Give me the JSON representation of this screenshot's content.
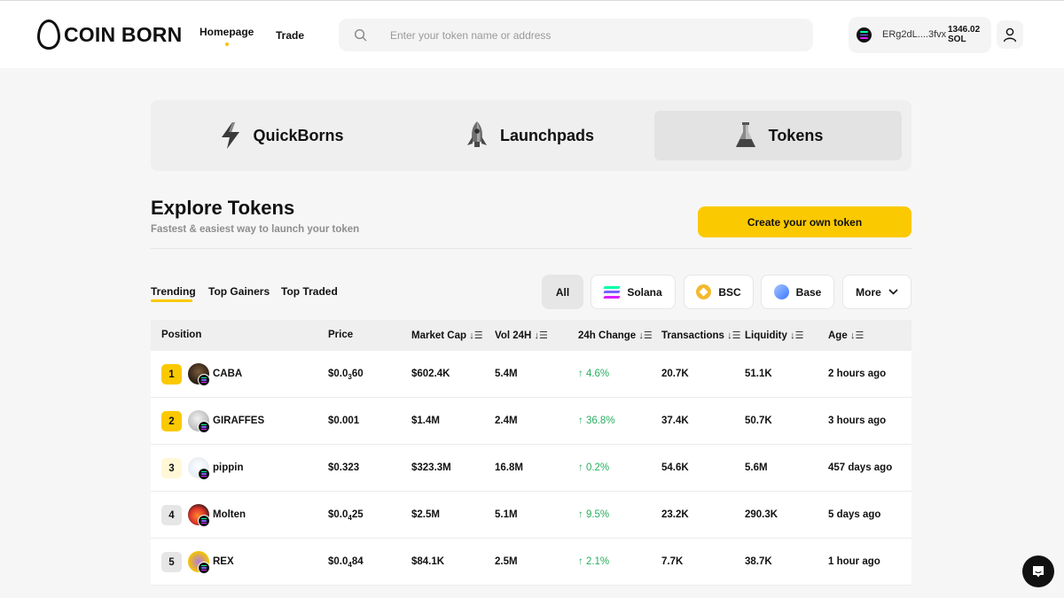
{
  "header": {
    "logo_text": "COIN BORN",
    "nav": [
      {
        "label": "Homepage",
        "active": true
      },
      {
        "label": "Trade",
        "active": false
      }
    ],
    "search_placeholder": "Enter your token name or address",
    "wallet": {
      "address": "ERg2dL....3fvx",
      "balance": "1346.02",
      "currency": "SOL"
    }
  },
  "categories": [
    {
      "label": "QuickBorns",
      "icon": "lightning-icon"
    },
    {
      "label": "Launchpads",
      "icon": "rocket-icon"
    },
    {
      "label": "Tokens",
      "icon": "flask-icon",
      "active": true
    }
  ],
  "explore": {
    "title": "Explore Tokens",
    "subtitle": "Fastest & easiest way to launch your token",
    "create_label": "Create your own token"
  },
  "filters": {
    "tabs": [
      "Trending",
      "Top Gainers",
      "Top Traded"
    ],
    "active_tab": "Trending",
    "chains": [
      "All",
      "Solana",
      "BSC",
      "Base",
      "More"
    ],
    "active_chain": "All"
  },
  "table": {
    "columns": [
      "Position",
      "Price",
      "Market Cap",
      "Vol 24H",
      "24h Change",
      "Transactions",
      "Liquidity",
      "Age"
    ],
    "rows": [
      {
        "rank": "1",
        "name": "CABA",
        "price_a": "$0.0",
        "price_sub": "3",
        "price_b": "60",
        "mcap": "$602.4K",
        "vol": "5.4M",
        "change": "↑ 4.6%",
        "tx": "20.7K",
        "liq": "51.1K",
        "age": "2 hours ago"
      },
      {
        "rank": "2",
        "name": "GIRAFFES",
        "price_a": "$0.001",
        "price_sub": "",
        "price_b": "",
        "mcap": "$1.4M",
        "vol": "2.4M",
        "change": "↑ 36.8%",
        "tx": "37.4K",
        "liq": "50.7K",
        "age": "3 hours ago"
      },
      {
        "rank": "3",
        "name": "pippin",
        "price_a": "$0.323",
        "price_sub": "",
        "price_b": "",
        "mcap": "$323.3M",
        "vol": "16.8M",
        "change": "↑ 0.2%",
        "tx": "54.6K",
        "liq": "5.6M",
        "age": "457 days ago"
      },
      {
        "rank": "4",
        "name": "Molten",
        "price_a": "$0.0",
        "price_sub": "4",
        "price_b": "25",
        "mcap": "$2.5M",
        "vol": "5.1M",
        "change": "↑ 9.5%",
        "tx": "23.2K",
        "liq": "290.3K",
        "age": "5 days ago"
      },
      {
        "rank": "5",
        "name": "REX",
        "price_a": "$0.0",
        "price_sub": "4",
        "price_b": "84",
        "mcap": "$84.1K",
        "vol": "2.5M",
        "change": "↑ 2.1%",
        "tx": "7.7K",
        "liq": "38.7K",
        "age": "1 hour ago"
      }
    ]
  },
  "colors": {
    "accent": "#fbc900",
    "positive": "#27ae60",
    "rank_gold": "#fbc900",
    "rank_light": "#fff7d6",
    "rank_gray": "#e6e6e6"
  }
}
